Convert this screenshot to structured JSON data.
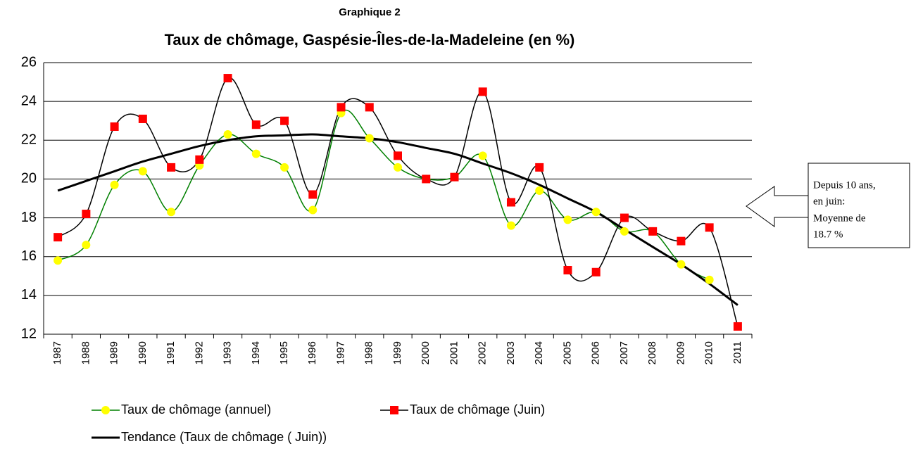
{
  "chart_data": {
    "type": "line",
    "supertitle": "Graphique 2",
    "title": "Taux de chômage, Gaspésie-Îles-de-la-Madeleine (en %)",
    "categories": [
      "1987",
      "1988",
      "1989",
      "1990",
      "1991",
      "1992",
      "1993",
      "1994",
      "1995",
      "1996",
      "1997",
      "1998",
      "1999",
      "2000",
      "2001",
      "2002",
      "2003",
      "2004",
      "2005",
      "2006",
      "2007",
      "2008",
      "2009",
      "2010",
      "2011"
    ],
    "series": [
      {
        "name": "Taux de chômage (annuel)",
        "color": "#008000",
        "marker": "circle",
        "marker_color": "#ffff00",
        "values": [
          15.8,
          16.6,
          19.7,
          20.4,
          18.3,
          20.7,
          22.3,
          21.3,
          20.6,
          18.4,
          23.4,
          22.1,
          20.6,
          20.0,
          20.1,
          21.2,
          17.6,
          19.4,
          17.9,
          18.3,
          17.3,
          17.3,
          15.6,
          14.8,
          null
        ]
      },
      {
        "name": "Taux de chômage (Juin)",
        "color": "#000000",
        "marker": "square",
        "marker_color": "#ff0000",
        "values": [
          17.0,
          18.2,
          22.7,
          23.1,
          20.6,
          21.0,
          25.2,
          22.8,
          23.0,
          19.2,
          23.7,
          23.7,
          21.2,
          20.0,
          20.1,
          24.5,
          18.8,
          20.6,
          15.3,
          15.2,
          18.0,
          17.3,
          16.8,
          17.5,
          12.4
        ]
      },
      {
        "name": "Tendance (Taux de chômage ( Juin))",
        "color": "#000000",
        "values": [
          19.4,
          19.9,
          20.4,
          20.9,
          21.3,
          21.7,
          22.0,
          22.2,
          22.25,
          22.3,
          22.2,
          22.1,
          21.9,
          21.6,
          21.3,
          20.8,
          20.3,
          19.7,
          19.0,
          18.3,
          17.4,
          16.5,
          15.6,
          14.6,
          13.5
        ]
      }
    ],
    "ylim": [
      12,
      26
    ],
    "yticks": [
      12,
      14,
      16,
      18,
      20,
      22,
      24,
      26
    ],
    "grid": true,
    "annotation": [
      "Depuis 10 ans,",
      "en juin:",
      "Moyenne de",
      "18.7 %"
    ]
  }
}
